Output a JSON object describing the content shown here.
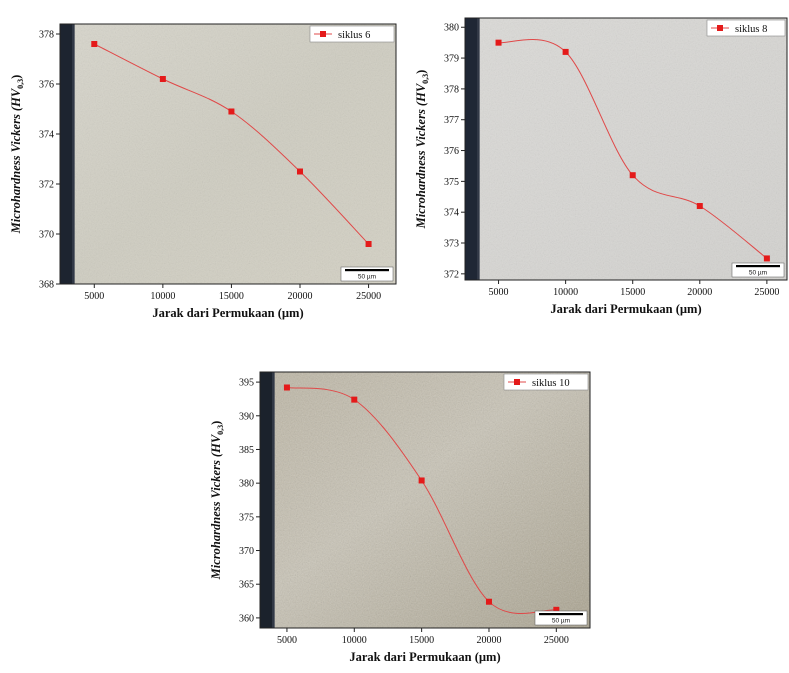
{
  "chart_data": [
    {
      "type": "line",
      "series": [
        {
          "name": "siklus 6",
          "x": [
            5000,
            10000,
            15000,
            20000,
            25000
          ],
          "values": [
            377.6,
            376.2,
            374.9,
            372.5,
            369.6
          ]
        }
      ],
      "xlabel": "Jarak dari Permukaan (µm)",
      "ylabel": "Microhardness Vickers (HV",
      "ylabel_subscript": "0,3",
      "xticks": [
        5000,
        10000,
        15000,
        20000,
        25000
      ],
      "yticks": [
        368,
        370,
        372,
        374,
        376,
        378
      ],
      "xlim": [
        2500,
        27000
      ],
      "ylim": [
        368,
        378.4
      ],
      "legend": "top-right",
      "scale_bar": "50 µm",
      "line_color": "#e04848",
      "marker_color": "#e41a1a"
    },
    {
      "type": "line",
      "series": [
        {
          "name": "siklus 8",
          "x": [
            5000,
            10000,
            15000,
            20000,
            25000
          ],
          "values": [
            379.5,
            379.2,
            375.2,
            374.2,
            372.5
          ]
        }
      ],
      "xlabel": "Jarak dari Permukaan (µm)",
      "ylabel": "Microhardness Vickers (HV",
      "ylabel_subscript": "0,3",
      "xticks": [
        5000,
        10000,
        15000,
        20000,
        25000
      ],
      "yticks": [
        372,
        373,
        374,
        375,
        376,
        377,
        378,
        379,
        380
      ],
      "xlim": [
        2500,
        26500
      ],
      "ylim": [
        371.8,
        380.3
      ],
      "legend": "top-right",
      "scale_bar": "50 µm",
      "line_color": "#e04848",
      "marker_color": "#e41a1a"
    },
    {
      "type": "line",
      "series": [
        {
          "name": "siklus 10",
          "x": [
            5000,
            10000,
            15000,
            20000,
            25000
          ],
          "values": [
            394.2,
            392.4,
            380.4,
            362.4,
            361.2
          ]
        }
      ],
      "xlabel": "Jarak dari Permukaan (µm)",
      "ylabel": "Microhardness Vickers (HV",
      "ylabel_subscript": "0,3",
      "xticks": [
        5000,
        10000,
        15000,
        20000,
        25000
      ],
      "yticks": [
        360,
        365,
        370,
        375,
        380,
        385,
        390,
        395
      ],
      "xlim": [
        3000,
        27500
      ],
      "ylim": [
        358.5,
        396.5
      ],
      "legend": "top-right",
      "scale_bar": "50 µm",
      "line_color": "#e04848",
      "marker_color": "#e41a1a"
    }
  ]
}
